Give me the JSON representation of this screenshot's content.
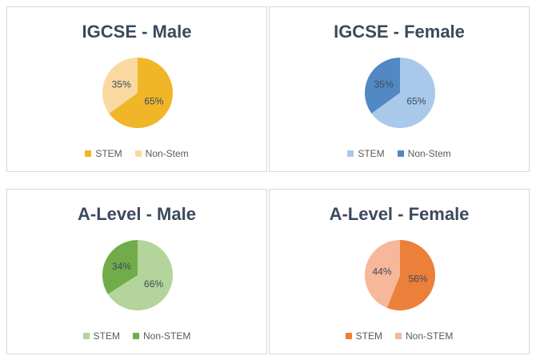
{
  "chart_data": [
    {
      "type": "pie",
      "title": "IGCSE - Male",
      "categories": [
        "STEM",
        "Non-Stem"
      ],
      "values": [
        65,
        35
      ],
      "labels": [
        "65%",
        "35%"
      ],
      "colors": [
        "#f0b627",
        "#fad9a0"
      ],
      "legend_position": "bottom"
    },
    {
      "type": "pie",
      "title": "IGCSE - Female",
      "categories": [
        "STEM",
        "Non-Stem"
      ],
      "values": [
        65,
        35
      ],
      "labels": [
        "65%",
        "35%"
      ],
      "colors": [
        "#a9c9ea",
        "#5289c4"
      ],
      "legend_position": "bottom"
    },
    {
      "type": "pie",
      "title": "A-Level - Male",
      "categories": [
        "STEM",
        "Non-STEM"
      ],
      "values": [
        66,
        34
      ],
      "labels": [
        "66%",
        "34%"
      ],
      "colors": [
        "#b3d49b",
        "#72ab4a"
      ],
      "legend_position": "bottom"
    },
    {
      "type": "pie",
      "title": "A-Level - Female",
      "categories": [
        "STEM",
        "Non-STEM"
      ],
      "values": [
        56,
        44
      ],
      "labels": [
        "56%",
        "44%"
      ],
      "colors": [
        "#ec7f3a",
        "#f6b79a"
      ],
      "legend_position": "bottom"
    }
  ]
}
